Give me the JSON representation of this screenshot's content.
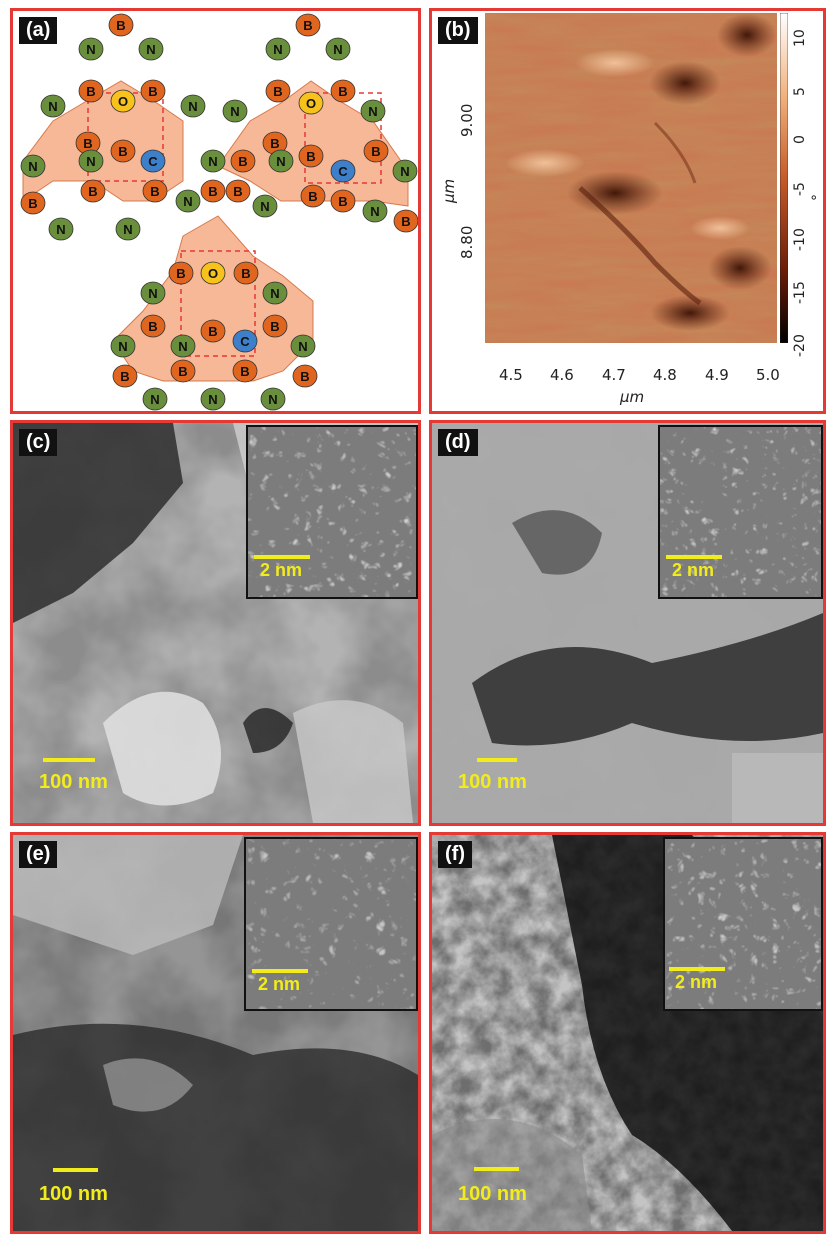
{
  "panels": {
    "a": {
      "label": "(a)"
    },
    "b": {
      "label": "(b)",
      "x_ticks": [
        "4.5",
        "4.6",
        "4.7",
        "4.8",
        "4.9",
        "5.0"
      ],
      "x_unit": "µm",
      "y_ticks": [
        "9.00",
        "8.80"
      ],
      "y_unit": "µm",
      "colorbar_ticks": [
        "10",
        "5",
        "0",
        "-5",
        "-10",
        "-15",
        "-20"
      ],
      "colorbar_unit": "°"
    },
    "c": {
      "label": "(c)",
      "scale": "100 nm",
      "inset_scale": "2 nm"
    },
    "d": {
      "label": "(d)",
      "scale": "100 nm",
      "inset_scale": "2 nm"
    },
    "e": {
      "label": "(e)",
      "scale": "100 nm",
      "inset_scale": "2 nm"
    },
    "f": {
      "label": "(f)",
      "scale": "100 nm",
      "inset_scale": "2 nm"
    }
  },
  "atoms": {
    "B": "B",
    "N": "N",
    "O": "O",
    "C": "C"
  },
  "colors": {
    "frame": "#e53935",
    "hex_fill": "#f6b896",
    "boron": "#e0661f",
    "nitrogen": "#6a8f3c",
    "oxygen": "#f7c21b",
    "carbon": "#3d7fc9",
    "scalebar": "#f2ec1c"
  }
}
